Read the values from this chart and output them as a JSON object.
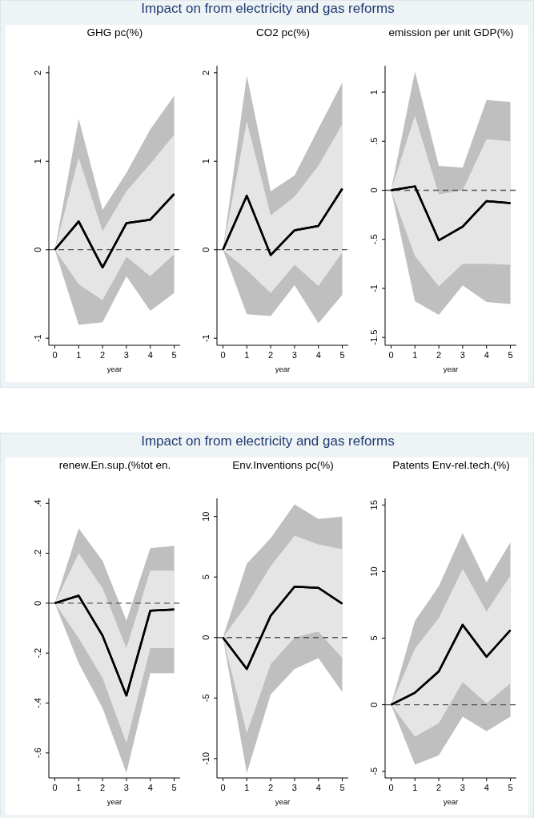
{
  "chart_data": [
    {
      "type": "line",
      "title": "Impact on from electricity and gas reforms",
      "subtitle": "GHG pc(%)",
      "xlabel": "year",
      "x": [
        0,
        1,
        2,
        3,
        4,
        5
      ],
      "xlim": [
        -0.25,
        5.25
      ],
      "xticks": [
        0,
        1,
        2,
        3,
        4,
        5
      ],
      "ylim": [
        -1.08,
        2.08
      ],
      "yticks": [
        -1,
        0,
        1,
        2
      ],
      "ref_lines": [
        {
          "axis": "y",
          "value": 0,
          "color": "#555555",
          "line_style": "dashed"
        }
      ],
      "series": [
        {
          "color": "#000000",
          "values": [
            0,
            0.32,
            -0.2,
            0.3,
            0.34,
            0.63
          ],
          "lower": [
            0,
            -0.85,
            -0.82,
            -0.3,
            -0.69,
            -0.49
          ],
          "upper": [
            0,
            1.48,
            0.45,
            0.87,
            1.36,
            1.74
          ]
        },
        {
          "color": "#000000",
          "values": [
            0,
            0.32,
            -0.2,
            0.3,
            0.34,
            0.63
          ],
          "lower": [
            0,
            -0.39,
            -0.57,
            -0.08,
            -0.3,
            -0.05
          ],
          "upper": [
            0,
            1.04,
            0.21,
            0.66,
            0.97,
            1.3
          ]
        }
      ]
    },
    {
      "type": "line",
      "subtitle": "CO2 pc(%)",
      "xlabel": "year",
      "x": [
        0,
        1,
        2,
        3,
        4,
        5
      ],
      "xlim": [
        -0.25,
        5.25
      ],
      "xticks": [
        0,
        1,
        2,
        3,
        4,
        5
      ],
      "ylim": [
        -1.08,
        2.08
      ],
      "yticks": [
        -1,
        0,
        1,
        2
      ],
      "ref_lines": [
        {
          "axis": "y",
          "value": 0,
          "color": "#555555",
          "line_style": "dashed"
        }
      ],
      "series": [
        {
          "color": "#000000",
          "values": [
            0,
            0.61,
            -0.06,
            0.22,
            0.27,
            0.69
          ],
          "lower": [
            0,
            -0.73,
            -0.75,
            -0.4,
            -0.83,
            -0.51
          ],
          "upper": [
            0,
            1.97,
            0.66,
            0.84,
            1.37,
            1.89
          ]
        },
        {
          "color": "#000000",
          "values": [
            0,
            0.61,
            -0.06,
            0.22,
            0.27,
            0.69
          ],
          "lower": [
            0,
            -0.23,
            -0.49,
            -0.17,
            -0.41,
            -0.03
          ],
          "upper": [
            0,
            1.45,
            0.39,
            0.6,
            0.95,
            1.42
          ]
        }
      ]
    },
    {
      "type": "line",
      "subtitle": "emission per unit GDP(%)",
      "xlabel": "year",
      "x": [
        0,
        1,
        2,
        3,
        4,
        5
      ],
      "xlim": [
        -0.25,
        5.25
      ],
      "xticks": [
        0,
        1,
        2,
        3,
        4,
        5
      ],
      "ylim": [
        -1.58,
        1.27
      ],
      "yticks": [
        -1.5,
        -1,
        {
          "value": -0.5,
          "label": "-.5"
        },
        0,
        {
          "value": 0.5,
          "label": ".5"
        },
        1
      ],
      "ref_lines": [
        {
          "axis": "y",
          "value": 0,
          "color": "#555555",
          "line_style": "dashed"
        }
      ],
      "series": [
        {
          "color": "#000000",
          "values": [
            0,
            0.04,
            -0.51,
            -0.37,
            -0.11,
            -0.13
          ],
          "lower": [
            0,
            -1.13,
            -1.27,
            -0.97,
            -1.14,
            -1.16
          ],
          "upper": [
            0,
            1.21,
            0.25,
            0.23,
            0.92,
            0.9
          ]
        },
        {
          "color": "#000000",
          "values": [
            0,
            0.04,
            -0.51,
            -0.37,
            -0.11,
            -0.13
          ],
          "lower": [
            0,
            -0.67,
            -0.98,
            -0.75,
            -0.75,
            -0.76
          ],
          "upper": [
            0,
            0.76,
            -0.04,
            0,
            0.52,
            0.5
          ]
        }
      ]
    },
    {
      "type": "line",
      "title": "Impact on from electricity and gas reforms",
      "subtitle": "renew.En.sup.(%tot en.",
      "xlabel": "year",
      "x": [
        0,
        1,
        2,
        3,
        4,
        5
      ],
      "xlim": [
        -0.25,
        5.25
      ],
      "xticks": [
        0,
        1,
        2,
        3,
        4,
        5
      ],
      "ylim": [
        -0.7,
        0.42
      ],
      "yticks": [
        {
          "value": -0.6,
          "label": "-.6"
        },
        {
          "value": -0.4,
          "label": "-.4"
        },
        {
          "value": -0.2,
          "label": "-.2"
        },
        0,
        {
          "value": 0.2,
          "label": ".2"
        },
        {
          "value": 0.4,
          "label": ".4"
        }
      ],
      "ref_lines": [
        {
          "axis": "y",
          "value": 0,
          "color": "#555555",
          "line_style": "dashed"
        }
      ],
      "series": [
        {
          "color": "#000000",
          "values": [
            0,
            0.03,
            -0.13,
            -0.37,
            -0.03,
            -0.025
          ],
          "lower": [
            0,
            -0.24,
            -0.42,
            -0.68,
            -0.28,
            -0.28
          ],
          "upper": [
            0,
            0.3,
            0.17,
            -0.07,
            0.22,
            0.23
          ]
        },
        {
          "color": "#000000",
          "values": [
            0,
            0.03,
            -0.13,
            -0.37,
            -0.03,
            -0.025
          ],
          "lower": [
            0,
            -0.14,
            -0.3,
            -0.56,
            -0.18,
            -0.18
          ],
          "upper": [
            0,
            0.2,
            0.06,
            -0.18,
            0.13,
            0.13
          ]
        }
      ]
    },
    {
      "type": "line",
      "subtitle": "Env.Inventions pc(%)",
      "xlabel": "year",
      "x": [
        0,
        1,
        2,
        3,
        4,
        5
      ],
      "xlim": [
        -0.25,
        5.25
      ],
      "xticks": [
        0,
        1,
        2,
        3,
        4,
        5
      ],
      "ylim": [
        -11.6,
        11.5
      ],
      "yticks": [
        -10,
        -5,
        0,
        5,
        10
      ],
      "ref_lines": [
        {
          "axis": "y",
          "value": 0,
          "color": "#555555",
          "line_style": "dashed"
        }
      ],
      "series": [
        {
          "color": "#000000",
          "values": [
            0,
            -2.6,
            1.8,
            4.2,
            4.1,
            2.8
          ],
          "lower": [
            0,
            -11.2,
            -4.7,
            -2.6,
            -1.7,
            -4.5
          ],
          "upper": [
            0,
            6.1,
            8.2,
            11,
            9.8,
            10
          ]
        },
        {
          "color": "#000000",
          "values": [
            0,
            -2.6,
            1.8,
            4.2,
            4.1,
            2.8
          ],
          "lower": [
            0,
            -7.9,
            -2.2,
            0,
            0.5,
            -1.7
          ],
          "upper": [
            0,
            2.7,
            5.9,
            8.4,
            7.7,
            7.3
          ]
        }
      ]
    },
    {
      "type": "line",
      "subtitle": "Patents Env-rel.tech.(%)",
      "xlabel": "year",
      "x": [
        0,
        1,
        2,
        3,
        4,
        5
      ],
      "xlim": [
        -0.25,
        5.25
      ],
      "xticks": [
        0,
        1,
        2,
        3,
        4,
        5
      ],
      "ylim": [
        -5.5,
        15.5
      ],
      "yticks": [
        -5,
        0,
        5,
        10,
        15
      ],
      "ref_lines": [
        {
          "axis": "y",
          "value": 0,
          "color": "#555555",
          "line_style": "dashed"
        }
      ],
      "series": [
        {
          "color": "#000000",
          "values": [
            0,
            0.9,
            2.5,
            6,
            3.6,
            5.6
          ],
          "lower": [
            0,
            -4.5,
            -3.8,
            -0.9,
            -2,
            -0.9
          ],
          "upper": [
            0,
            6.3,
            8.9,
            12.9,
            9.2,
            12.2
          ]
        },
        {
          "color": "#000000",
          "values": [
            0,
            0.9,
            2.5,
            6,
            3.6,
            5.6
          ],
          "lower": [
            0,
            -2.4,
            -1.4,
            1.7,
            0.1,
            1.6
          ],
          "upper": [
            0,
            4.2,
            6.5,
            10.2,
            7,
            9.7
          ]
        }
      ]
    }
  ]
}
